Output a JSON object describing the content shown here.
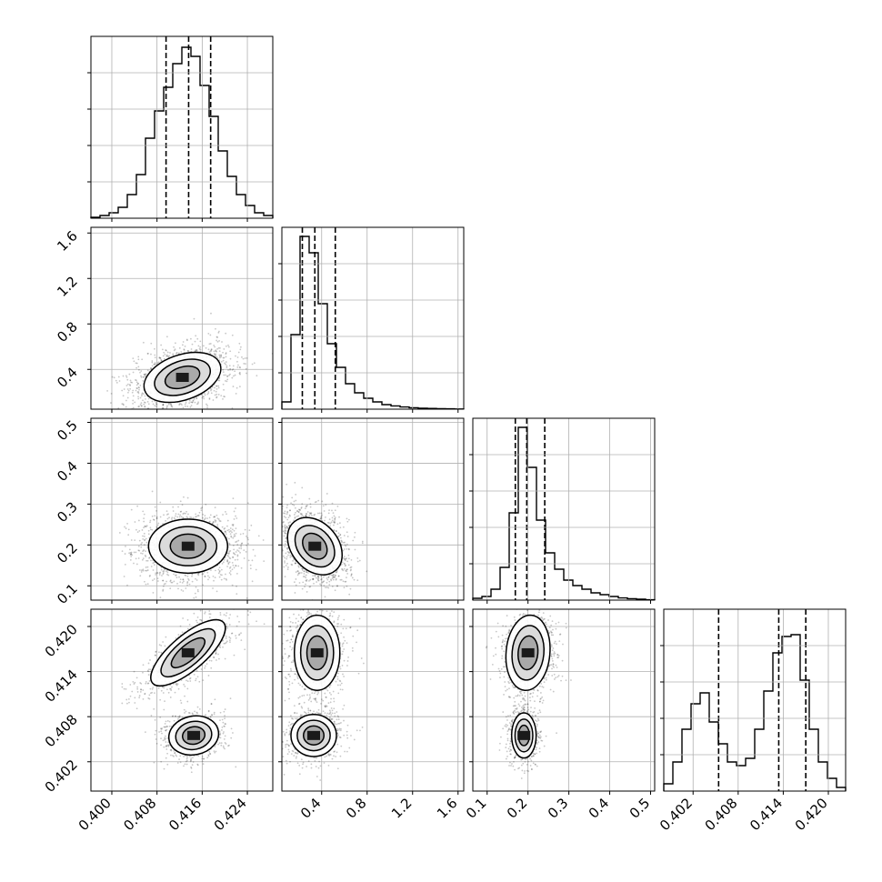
{
  "chart_data": {
    "type": "corner",
    "colors": {
      "ink": "#000000",
      "grid": "#b0b0b0",
      "panel_bg": "#ffffff"
    },
    "grid": true,
    "parameters": [
      {
        "index": 0,
        "range": [
          0.3963,
          0.4285
        ],
        "ticks": [
          {
            "v": 0.4,
            "label": "0.400"
          },
          {
            "v": 0.408,
            "label": "0.408"
          },
          {
            "v": 0.416,
            "label": "0.416"
          },
          {
            "v": 0.424,
            "label": "0.424"
          }
        ],
        "quantiles": [
          0.4096,
          0.4136,
          0.4175
        ]
      },
      {
        "index": 1,
        "range": [
          0.05,
          1.65
        ],
        "ticks": [
          {
            "v": 0.4,
            "label": "0.4"
          },
          {
            "v": 0.8,
            "label": "0.8"
          },
          {
            "v": 1.2,
            "label": "1.2"
          },
          {
            "v": 1.6,
            "label": "1.6"
          }
        ],
        "quantiles": [
          0.23,
          0.34,
          0.52
        ]
      },
      {
        "index": 2,
        "range": [
          0.065,
          0.51
        ],
        "ticks": [
          {
            "v": 0.1,
            "label": "0.1"
          },
          {
            "v": 0.2,
            "label": "0.2"
          },
          {
            "v": 0.3,
            "label": "0.3"
          },
          {
            "v": 0.4,
            "label": "0.4"
          },
          {
            "v": 0.5,
            "label": "0.5"
          }
        ],
        "quantiles": [
          0.169,
          0.197,
          0.241
        ]
      },
      {
        "index": 3,
        "range": [
          0.3981,
          0.4223
        ],
        "ticks": [
          {
            "v": 0.402,
            "label": "0.402"
          },
          {
            "v": 0.408,
            "label": "0.408"
          },
          {
            "v": 0.414,
            "label": "0.414"
          },
          {
            "v": 0.42,
            "label": "0.420"
          }
        ],
        "quantiles": [
          0.4054,
          0.4134,
          0.417
        ]
      }
    ],
    "histograms": [
      {
        "param": 0,
        "counts": [
          0.005,
          0.015,
          0.03,
          0.06,
          0.13,
          0.24,
          0.44,
          0.59,
          0.72,
          0.85,
          0.94,
          0.89,
          0.73,
          0.56,
          0.37,
          0.23,
          0.13,
          0.07,
          0.03,
          0.015
        ]
      },
      {
        "param": 1,
        "counts": [
          0.04,
          0.41,
          0.95,
          0.86,
          0.58,
          0.36,
          0.23,
          0.14,
          0.09,
          0.06,
          0.04,
          0.025,
          0.018,
          0.012,
          0.008,
          0.005,
          0.004,
          0.003,
          0.002,
          0.001
        ]
      },
      {
        "param": 2,
        "counts": [
          0.01,
          0.02,
          0.06,
          0.18,
          0.48,
          0.95,
          0.73,
          0.44,
          0.26,
          0.17,
          0.11,
          0.08,
          0.06,
          0.04,
          0.03,
          0.02,
          0.012,
          0.008,
          0.005,
          0.002
        ]
      },
      {
        "param": 3,
        "counts": [
          0.04,
          0.16,
          0.34,
          0.48,
          0.54,
          0.38,
          0.26,
          0.16,
          0.14,
          0.18,
          0.34,
          0.55,
          0.76,
          0.85,
          0.86,
          0.61,
          0.34,
          0.16,
          0.07,
          0.02
        ]
      }
    ],
    "pairs": [
      {
        "x": 0,
        "y": 1,
        "modes": [
          {
            "mx": 0.4125,
            "my": 0.33,
            "sx": 0.0034,
            "sy": 0.11,
            "rho": 0.35,
            "w": 1
          }
        ]
      },
      {
        "x": 0,
        "y": 2,
        "modes": [
          {
            "mx": 0.4135,
            "my": 0.197,
            "sx": 0.0035,
            "sy": 0.033,
            "rho": 0.0,
            "w": 1
          }
        ]
      },
      {
        "x": 1,
        "y": 2,
        "modes": [
          {
            "mx": 0.34,
            "my": 0.197,
            "sx": 0.12,
            "sy": 0.035,
            "rho": -0.3,
            "w": 1
          }
        ]
      },
      {
        "x": 0,
        "y": 3,
        "modes": [
          {
            "mx": 0.4135,
            "my": 0.4165,
            "sx": 0.0033,
            "sy": 0.0022,
            "rho": 0.75,
            "w": 0.55
          },
          {
            "mx": 0.4145,
            "my": 0.4055,
            "sx": 0.0022,
            "sy": 0.0013,
            "rho": 0.1,
            "w": 0.45
          }
        ]
      },
      {
        "x": 1,
        "y": 3,
        "modes": [
          {
            "mx": 0.36,
            "my": 0.4165,
            "sx": 0.1,
            "sy": 0.0025,
            "rho": 0.0,
            "w": 0.55
          },
          {
            "mx": 0.33,
            "my": 0.4055,
            "sx": 0.1,
            "sy": 0.0014,
            "rho": 0.0,
            "w": 0.45
          }
        ]
      },
      {
        "x": 2,
        "y": 3,
        "modes": [
          {
            "mx": 0.2,
            "my": 0.4165,
            "sx": 0.027,
            "sy": 0.0025,
            "rho": 0.1,
            "w": 0.55
          },
          {
            "mx": 0.19,
            "my": 0.4055,
            "sx": 0.015,
            "sy": 0.0015,
            "rho": 0.0,
            "w": 0.45
          }
        ]
      }
    ]
  }
}
